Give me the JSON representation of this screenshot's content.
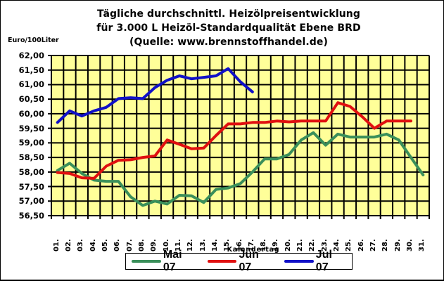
{
  "chart_data": {
    "type": "line",
    "title": "Tägliche durchschnittl. Heizölpreisentwicklung",
    "subtitle": "für 3.000 L Heizöl-Standardqualität Ebene BRD",
    "source": "(Quelle: www.brennstoffhandel.de)",
    "xlabel": "Kalendertag",
    "ylabel": "Euro/100Liter",
    "ylim": [
      56.5,
      62.0
    ],
    "grid": true,
    "legend_position": "bottom",
    "plot_background": "#FFFF99",
    "yticks": [
      "62,00",
      "61,50",
      "61,00",
      "60,50",
      "60,00",
      "59,50",
      "59,00",
      "58,50",
      "58,00",
      "57,50",
      "57,00",
      "56,50"
    ],
    "categories": [
      "01.",
      "02.",
      "03.",
      "04.",
      "05.",
      "06.",
      "07.",
      "08.",
      "09.",
      "10.",
      "11.",
      "12.",
      "13.",
      "14.",
      "15.",
      "16.",
      "17.",
      "18.",
      "19.",
      "20.",
      "21.",
      "22.",
      "23.",
      "24.",
      "25.",
      "26.",
      "27.",
      "28.",
      "29.",
      "30.",
      "31."
    ],
    "series": [
      {
        "name": "Mai 07",
        "color": "#3A8F5A",
        "values": [
          58.05,
          58.3,
          57.95,
          57.72,
          57.68,
          57.68,
          57.15,
          56.85,
          57.0,
          56.9,
          57.2,
          57.18,
          56.95,
          57.4,
          57.45,
          57.6,
          58.0,
          58.45,
          58.45,
          58.6,
          59.1,
          59.35,
          58.92,
          59.3,
          59.2,
          59.2,
          59.2,
          59.3,
          59.1,
          58.5,
          57.9
        ]
      },
      {
        "name": "Jun 07",
        "color": "#E01010",
        "values": [
          57.98,
          57.95,
          57.8,
          57.78,
          58.2,
          58.4,
          58.42,
          58.5,
          58.55,
          59.1,
          58.95,
          58.8,
          58.82,
          59.25,
          59.65,
          59.65,
          59.7,
          59.7,
          59.75,
          59.72,
          59.75,
          59.75,
          59.75,
          60.38,
          60.25,
          59.9,
          59.5,
          59.75,
          59.75,
          59.75
        ]
      },
      {
        "name": "Jul 07",
        "color": "#1010C8",
        "values": [
          59.7,
          60.1,
          59.92,
          60.1,
          60.22,
          60.52,
          60.55,
          60.52,
          60.9,
          61.15,
          61.3,
          61.2,
          61.25,
          61.3,
          61.55,
          61.1,
          60.75
        ]
      }
    ]
  }
}
